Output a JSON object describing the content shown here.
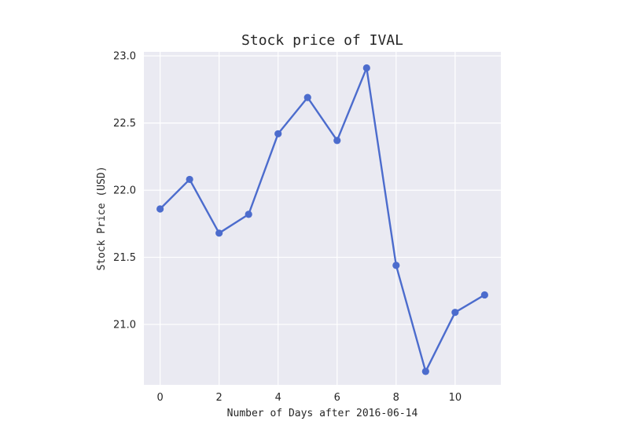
{
  "chart_data": {
    "type": "line",
    "title": "Stock price of IVAL",
    "xlabel": "Number of Days after 2016-06-14",
    "ylabel": "Stock Price (USD)",
    "x": [
      0,
      1,
      2,
      3,
      4,
      5,
      6,
      7,
      8,
      9,
      10,
      11
    ],
    "series": [
      {
        "values": [
          21.86,
          22.08,
          21.68,
          21.82,
          22.42,
          22.69,
          22.37,
          22.91,
          21.44,
          20.65,
          21.09,
          21.22
        ]
      }
    ],
    "xlim": [
      -0.55,
      11.55
    ],
    "ylim": [
      20.55,
      23.03
    ],
    "xticks": [
      0,
      2,
      4,
      6,
      8,
      10
    ],
    "xtick_labels": [
      "0",
      "2",
      "4",
      "6",
      "8",
      "10"
    ],
    "yticks": [
      21.0,
      21.5,
      22.0,
      22.5,
      23.0
    ],
    "ytick_labels": [
      "21.0",
      "21.5",
      "22.0",
      "22.5",
      "23.0"
    ],
    "grid": true,
    "colors": {
      "line": "#4c6ccd",
      "plot_background": "#eaeaf2",
      "grid": "#ffffff",
      "text": "#262626"
    }
  }
}
